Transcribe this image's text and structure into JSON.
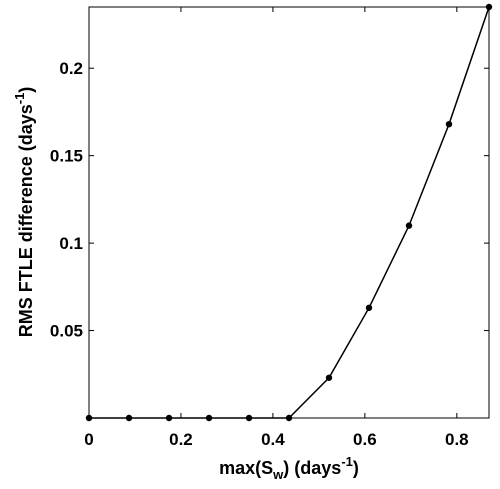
{
  "chart_data": {
    "type": "line",
    "xlabel": {
      "prefix": "max(S",
      "sub": "w",
      "middle": ") (days",
      "sup": "-1",
      "suffix": ")"
    },
    "ylabel": {
      "prefix": "RMS FTLE difference  (days",
      "sup": "-1",
      "suffix": ")"
    },
    "xlim": [
      0,
      0.87
    ],
    "ylim": [
      0,
      0.235
    ],
    "xticks": [
      0,
      0.2,
      0.4,
      0.6,
      0.8
    ],
    "xtick_labels": [
      "0",
      "0.2",
      "0.4",
      "0.6",
      "0.8"
    ],
    "yticks": [
      0.05,
      0.1,
      0.15,
      0.2
    ],
    "ytick_labels": [
      "0.05",
      "0.1",
      "0.15",
      "0.2"
    ],
    "grid": false,
    "series": [
      {
        "color": "#000000",
        "marker": "dot",
        "x": [
          0,
          0.087,
          0.174,
          0.261,
          0.348,
          0.435,
          0.522,
          0.609,
          0.696,
          0.783,
          0.87
        ],
        "y": [
          0,
          0,
          0,
          0,
          0,
          0,
          0.023,
          0.063,
          0.11,
          0.168,
          0.235
        ]
      }
    ]
  }
}
